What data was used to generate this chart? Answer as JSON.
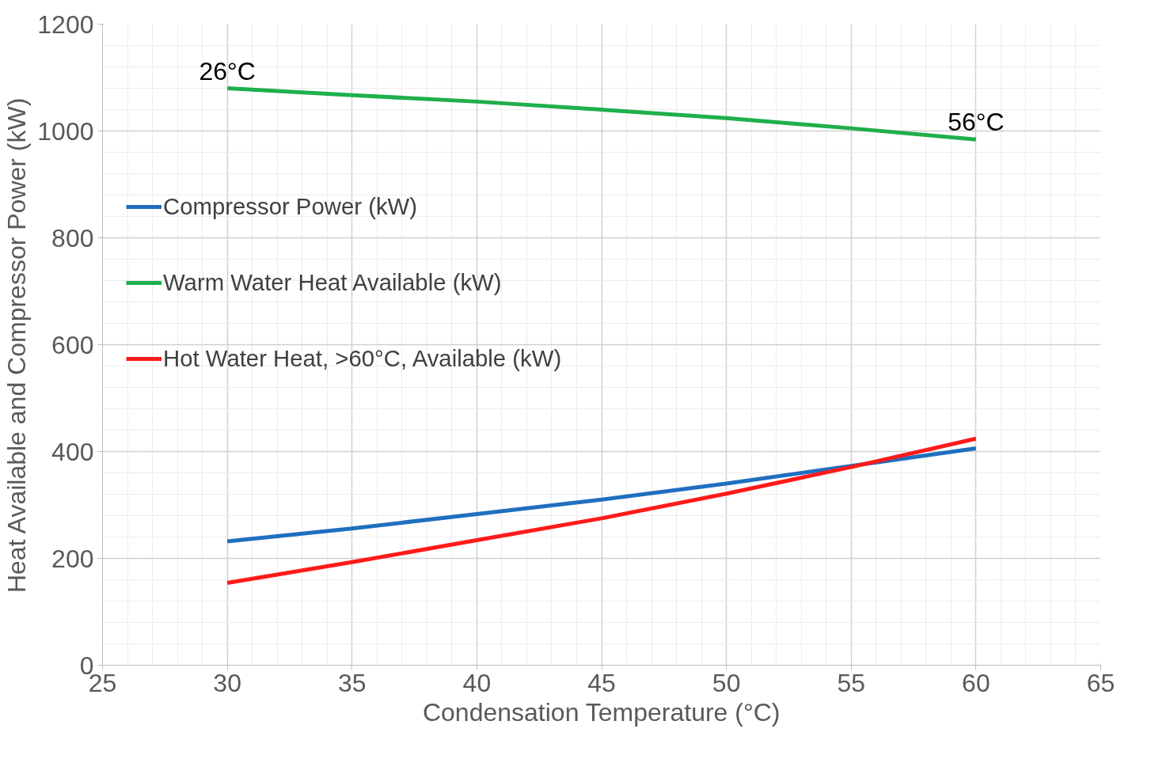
{
  "chart_data": {
    "type": "line",
    "xlabel": "Condensation Temperature (°C)",
    "ylabel": "Heat Available and Compressor Power (kW)",
    "x": [
      30,
      35,
      40,
      45,
      50,
      55,
      60
    ],
    "series": [
      {
        "name": "Compressor Power (kW)",
        "color": "#1f6fc0",
        "values": [
          232,
          256,
          283,
          310,
          340,
          373,
          406
        ]
      },
      {
        "name": "Warm Water Heat Available (kW)",
        "color": "#1faf4b",
        "values": [
          1080,
          1067,
          1055,
          1040,
          1024,
          1005,
          984
        ]
      },
      {
        "name": "Hot Water Heat, >60°C, Available (kW)",
        "color": "#ff1a1a",
        "values": [
          154,
          193,
          234,
          275,
          321,
          371,
          424
        ]
      }
    ],
    "xlim": [
      25,
      65
    ],
    "xticks": [
      25,
      30,
      35,
      40,
      45,
      50,
      55,
      60,
      65
    ],
    "ylim": [
      0,
      1200
    ],
    "yticks": [
      0,
      200,
      400,
      600,
      800,
      1000,
      1200
    ],
    "grid": true,
    "legend": "top left",
    "marker": "none",
    "line_style": "solid",
    "annotations": [
      {
        "text": "26°C",
        "x": 30,
        "y": 1080
      },
      {
        "text": "56°C",
        "x": 60,
        "y": 984
      }
    ]
  }
}
